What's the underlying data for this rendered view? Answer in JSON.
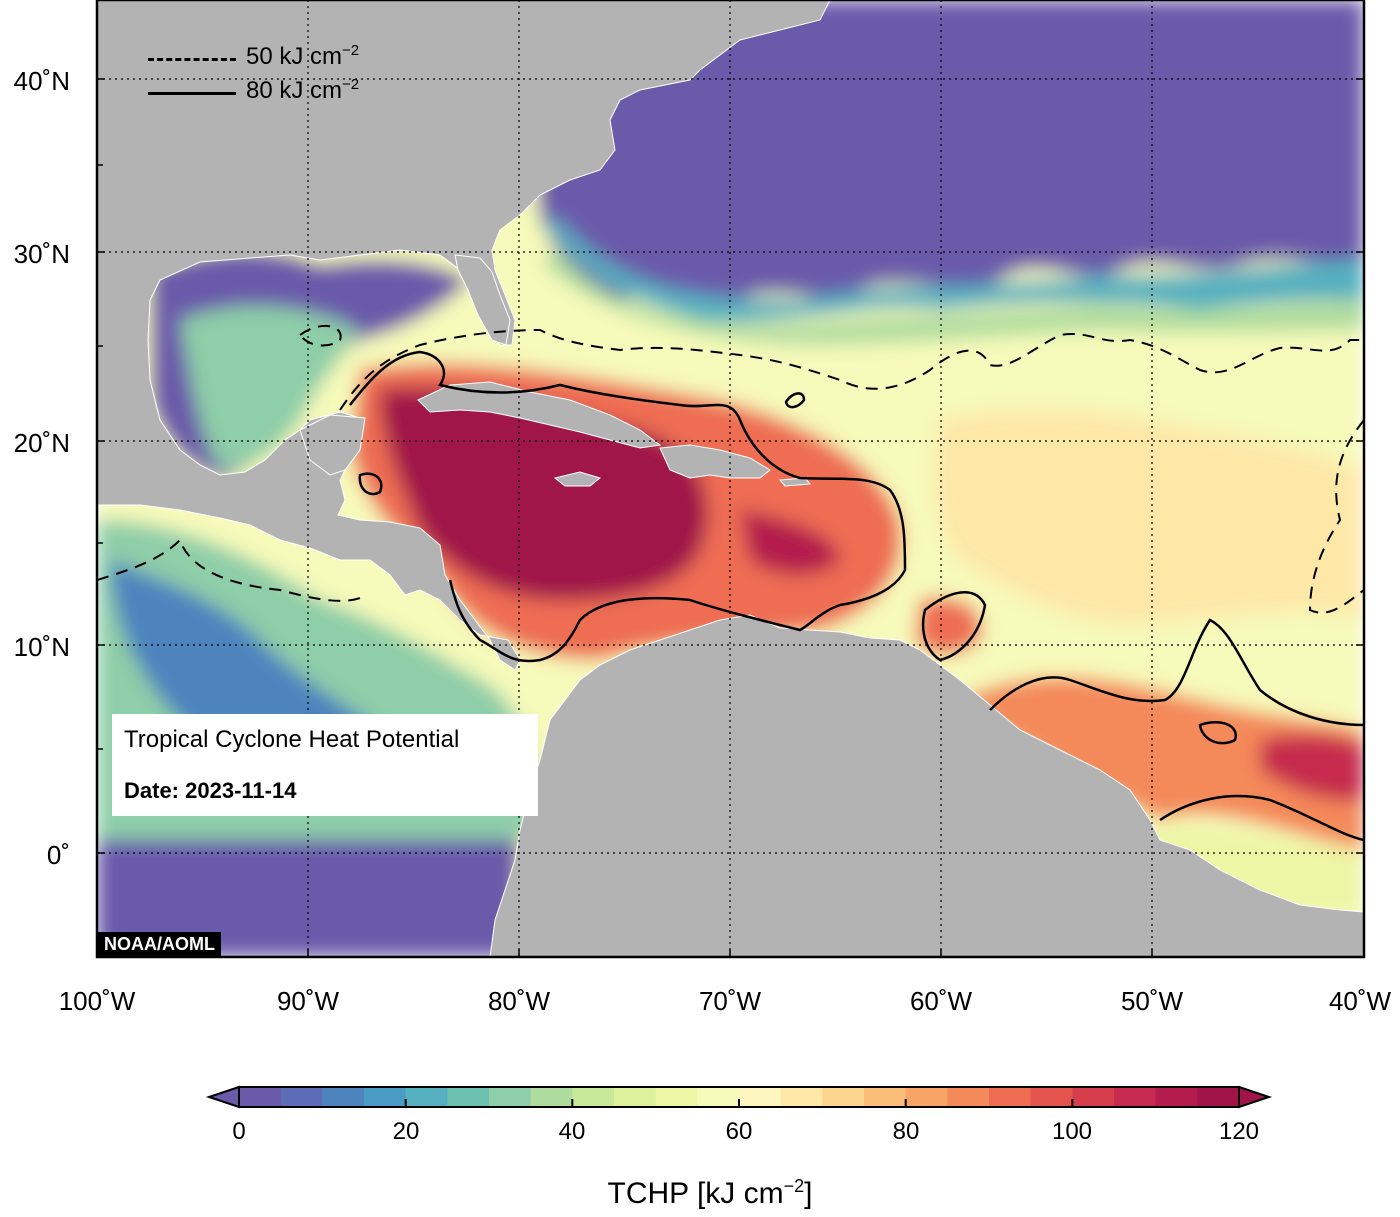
{
  "lat_labels": [
    "40˚N",
    "30˚N",
    "20˚N",
    "10˚N",
    "0˚"
  ],
  "lon_labels": [
    "100˚W",
    "90˚W",
    "80˚W",
    "70˚W",
    "60˚W",
    "50˚W",
    "40˚W"
  ],
  "legend": {
    "dashed_label": "50 kJ cm",
    "solid_label": "80 kJ cm",
    "exponent": "−2"
  },
  "info_box": {
    "title": "Tropical Cyclone Heat Potential",
    "date": "Date: 2023-11-14"
  },
  "credit": "NOAA/AOML",
  "colorbar": {
    "title": "TCHP [kJ cm",
    "title_exponent": "−2",
    "title_close": "]",
    "ticks": [
      "0",
      "20",
      "40",
      "60",
      "80",
      "100",
      "120"
    ],
    "min": 0,
    "max": 120,
    "step": 5,
    "colors": [
      "#6a5aaa",
      "#5c6cb6",
      "#4d84be",
      "#4b9cc4",
      "#55b0c0",
      "#6cc0b0",
      "#8ecea8",
      "#aedc9e",
      "#c8e89a",
      "#ddf09c",
      "#ecf6a4",
      "#f6faba",
      "#fdf6c0",
      "#fde8a8",
      "#fcd58e",
      "#fbbe78",
      "#f8a466",
      "#f4895a",
      "#ee6d52",
      "#e4544e",
      "#d63e4e",
      "#c62a4e",
      "#b41c4e",
      "#a0144a"
    ]
  },
  "colors": {
    "land": "#b3b3b3",
    "cold": "#6a5aaa",
    "warm_core": "#a0144a"
  }
}
